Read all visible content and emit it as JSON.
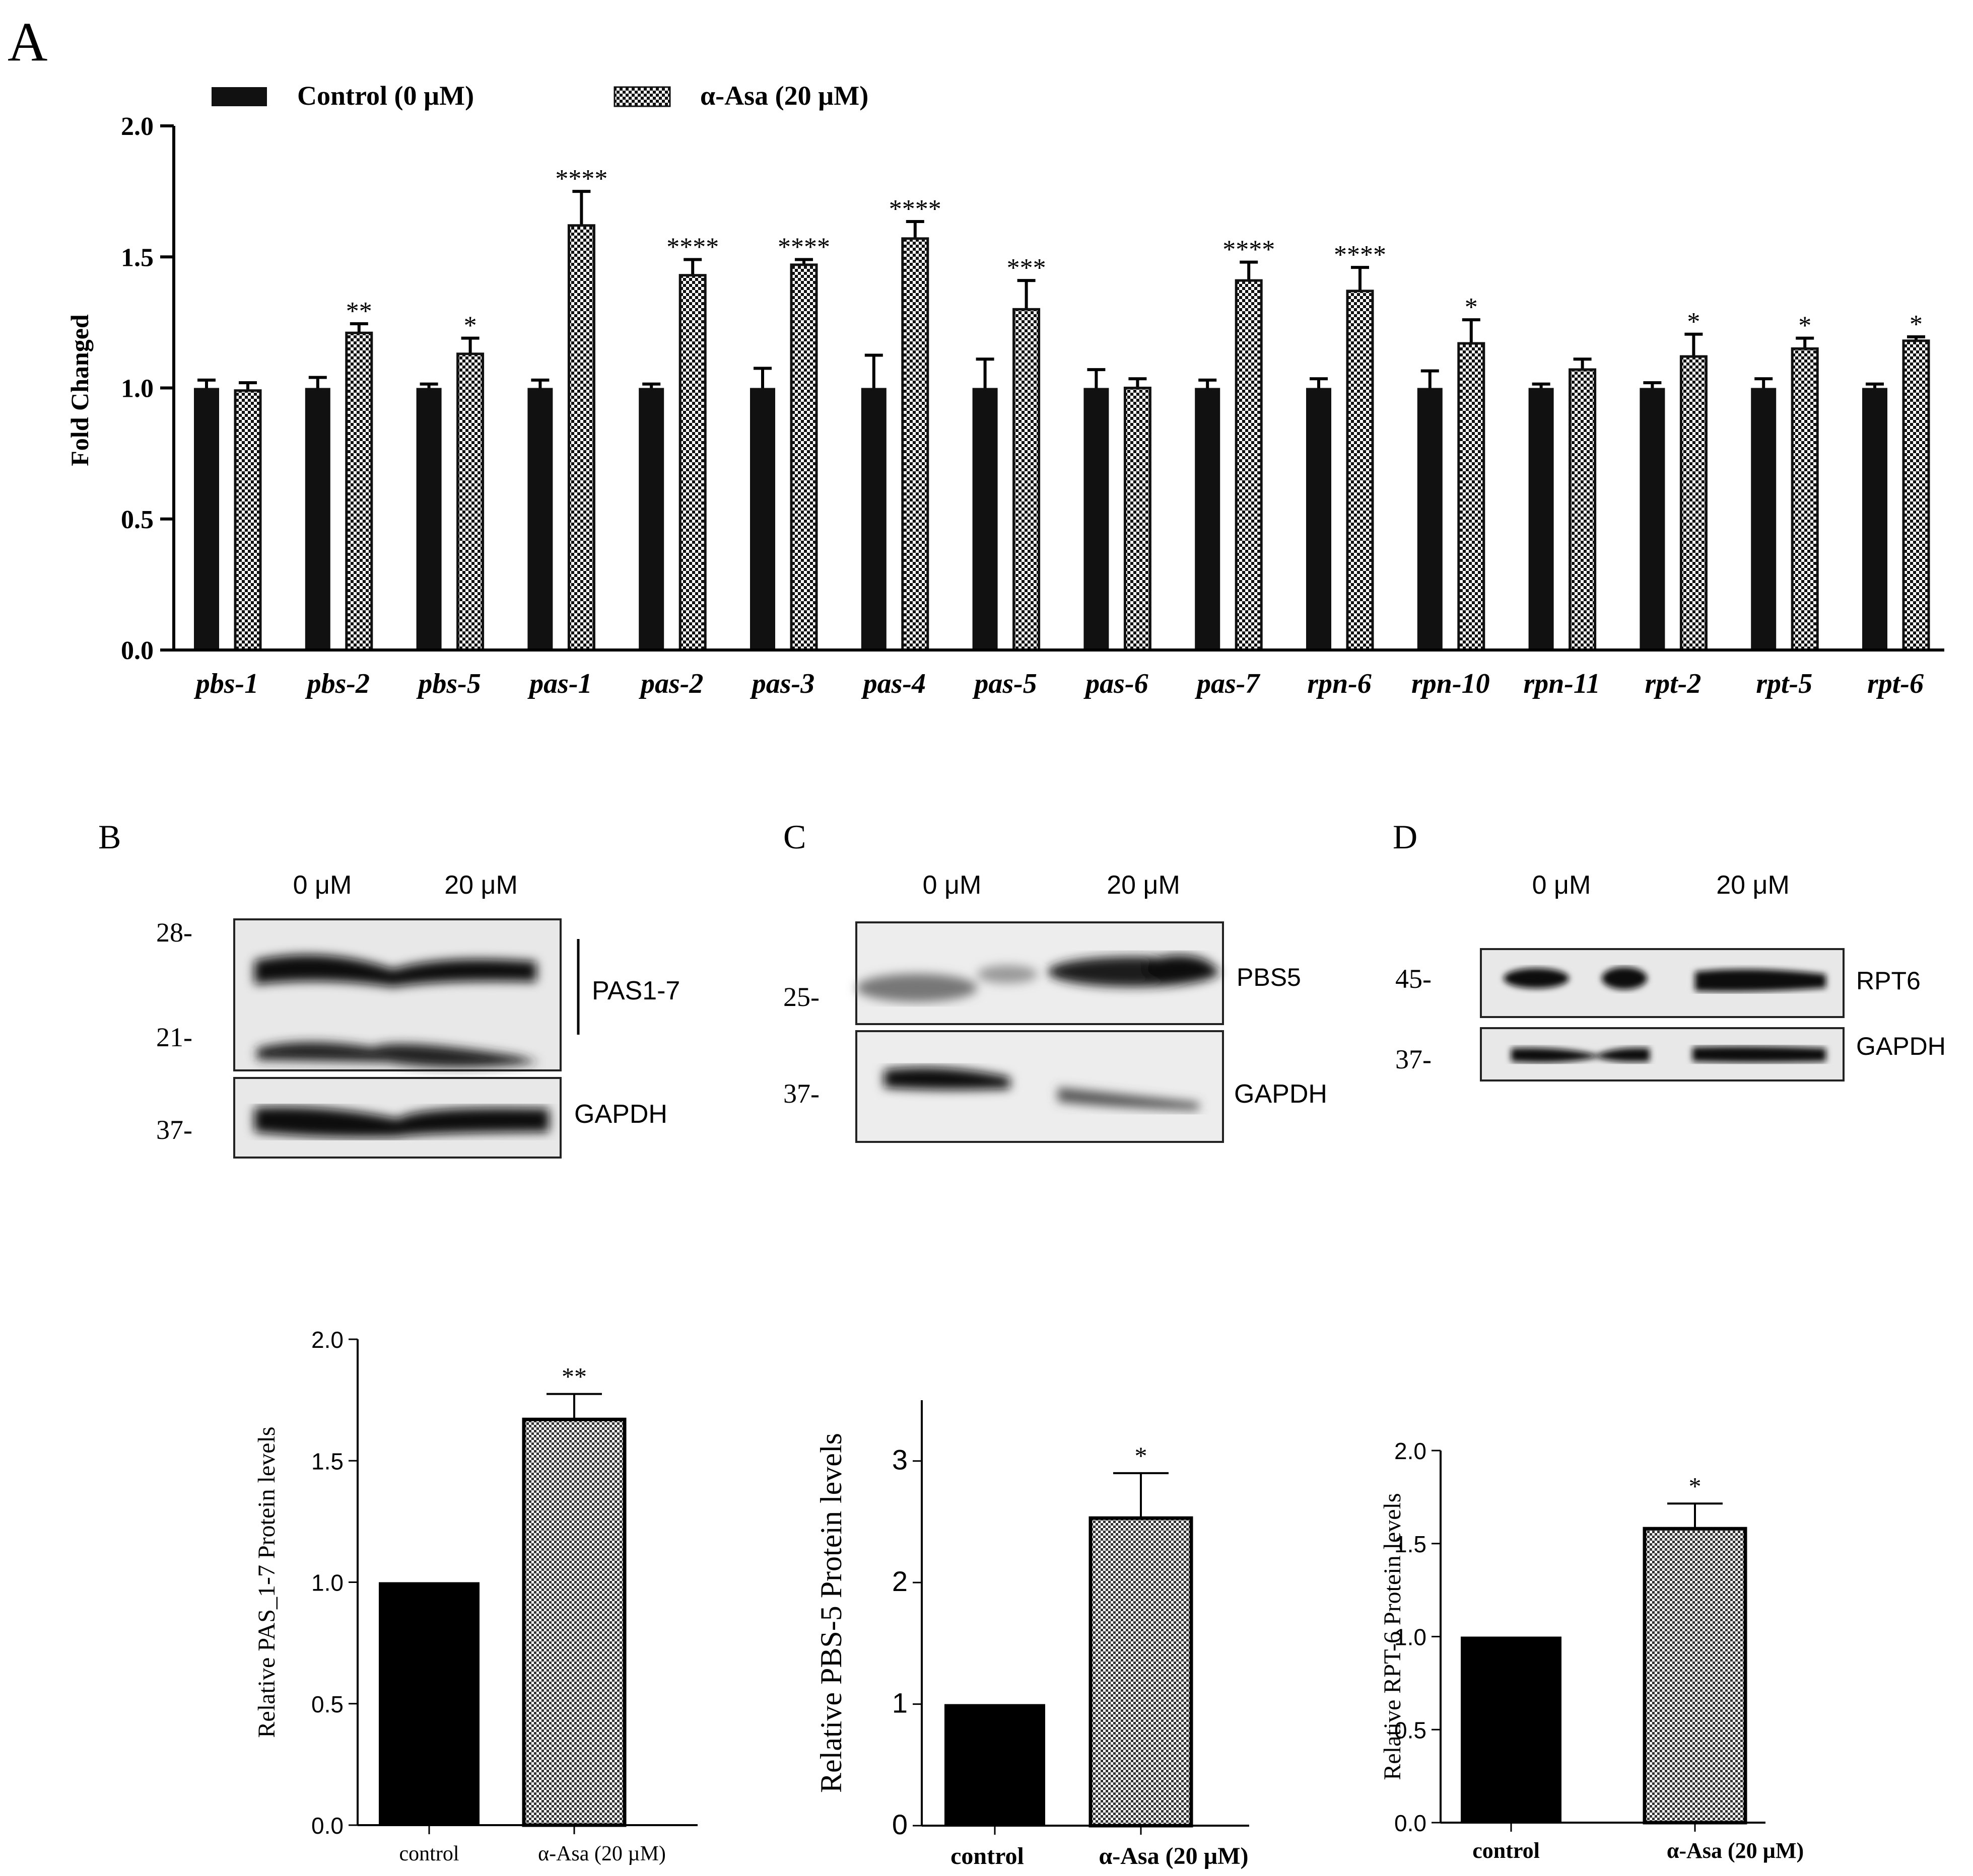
{
  "panel_letters": {
    "a": "A",
    "b": "B",
    "c": "C",
    "d": "D"
  },
  "chart_data": [
    {
      "panel": "A",
      "type": "bar",
      "ylabel": "Fold Changed",
      "ylim": [
        0,
        2.0
      ],
      "yticks": [
        "0.0",
        "0.5",
        "1.0",
        "1.5",
        "2.0"
      ],
      "legend": [
        "Control (0 µM)",
        "α-Asa (20 µM)"
      ],
      "legend_position": "top",
      "categories": [
        "pbs-1",
        "pbs-2",
        "pbs-5",
        "pas-1",
        "pas-2",
        "pas-3",
        "pas-4",
        "pas-5",
        "pas-6",
        "pas-7",
        "rpn-6",
        "rpn-10",
        "rpn-11",
        "rpt-2",
        "rpt-5",
        "rpt-6"
      ],
      "series": [
        {
          "name": "Control (0 µM)",
          "pattern": "solid",
          "values": [
            1.0,
            1.0,
            1.0,
            1.0,
            1.0,
            1.0,
            1.0,
            1.0,
            1.0,
            1.0,
            1.0,
            1.0,
            1.0,
            1.0,
            1.0,
            1.0
          ],
          "errors": [
            0.03,
            0.04,
            0.015,
            0.03,
            0.015,
            0.075,
            0.125,
            0.11,
            0.07,
            0.03,
            0.035,
            0.065,
            0.015,
            0.02,
            0.035,
            0.015
          ]
        },
        {
          "name": "α-Asa (20 µM)",
          "pattern": "checker",
          "values": [
            0.99,
            1.21,
            1.13,
            1.62,
            1.43,
            1.47,
            1.57,
            1.3,
            1.0,
            1.41,
            1.37,
            1.17,
            1.07,
            1.12,
            1.15,
            1.18
          ],
          "errors": [
            0.03,
            0.035,
            0.06,
            0.13,
            0.06,
            0.02,
            0.065,
            0.11,
            0.035,
            0.07,
            0.09,
            0.09,
            0.04,
            0.085,
            0.04,
            0.015
          ]
        }
      ],
      "significance": [
        "",
        "**",
        "*",
        "****",
        "****",
        "****",
        "****",
        "***",
        "",
        "****",
        "****",
        "*",
        "",
        "*",
        "*",
        "*"
      ]
    },
    {
      "panel": "B",
      "type": "bar",
      "ylabel": "Relative PAS_1-7 Protein levels",
      "ylim": [
        0,
        2.0
      ],
      "yticks": [
        "0.0",
        "0.5",
        "1.0",
        "1.5",
        "2.0"
      ],
      "categories": [
        "control",
        "α-Asa (20 µM)"
      ],
      "values": [
        1.0,
        1.67
      ],
      "errors": [
        0,
        0.105
      ],
      "significance": [
        "",
        "**"
      ]
    },
    {
      "panel": "C",
      "type": "bar",
      "ylabel": "Relative PBS-5 Protein levels",
      "ylim": [
        0,
        3.5
      ],
      "yticks": [
        "0",
        "1",
        "2",
        "3"
      ],
      "categories": [
        "control",
        "α-Asa (20 µM)"
      ],
      "values": [
        1.0,
        2.53
      ],
      "errors": [
        0,
        0.37
      ],
      "significance": [
        "",
        "*"
      ]
    },
    {
      "panel": "D",
      "type": "bar",
      "ylabel": "Relative RPT-6 Protein levels",
      "ylim": [
        0,
        2.0
      ],
      "yticks": [
        "0.0",
        "0.5",
        "1.0",
        "1.5",
        "2.0"
      ],
      "categories": [
        "control",
        "α-Asa (20 µM)"
      ],
      "values": [
        1.0,
        1.58
      ],
      "errors": [
        0,
        0.135
      ],
      "significance": [
        "",
        "*"
      ]
    }
  ],
  "blots": {
    "b": {
      "lanes": [
        "0 μM",
        "20 μM"
      ],
      "markers": [
        "28-",
        "21-",
        "37-"
      ],
      "labels": [
        "PAS1-7",
        "GAPDH"
      ]
    },
    "c": {
      "lanes": [
        "0 μM",
        "20 μM"
      ],
      "markers": [
        "25-",
        "37-"
      ],
      "labels": [
        "PBS5",
        "GAPDH"
      ]
    },
    "d": {
      "lanes": [
        "0 μM",
        "20 μM"
      ],
      "markers": [
        "45-",
        "37-"
      ],
      "labels": [
        "RPT6",
        "GAPDH"
      ]
    }
  }
}
